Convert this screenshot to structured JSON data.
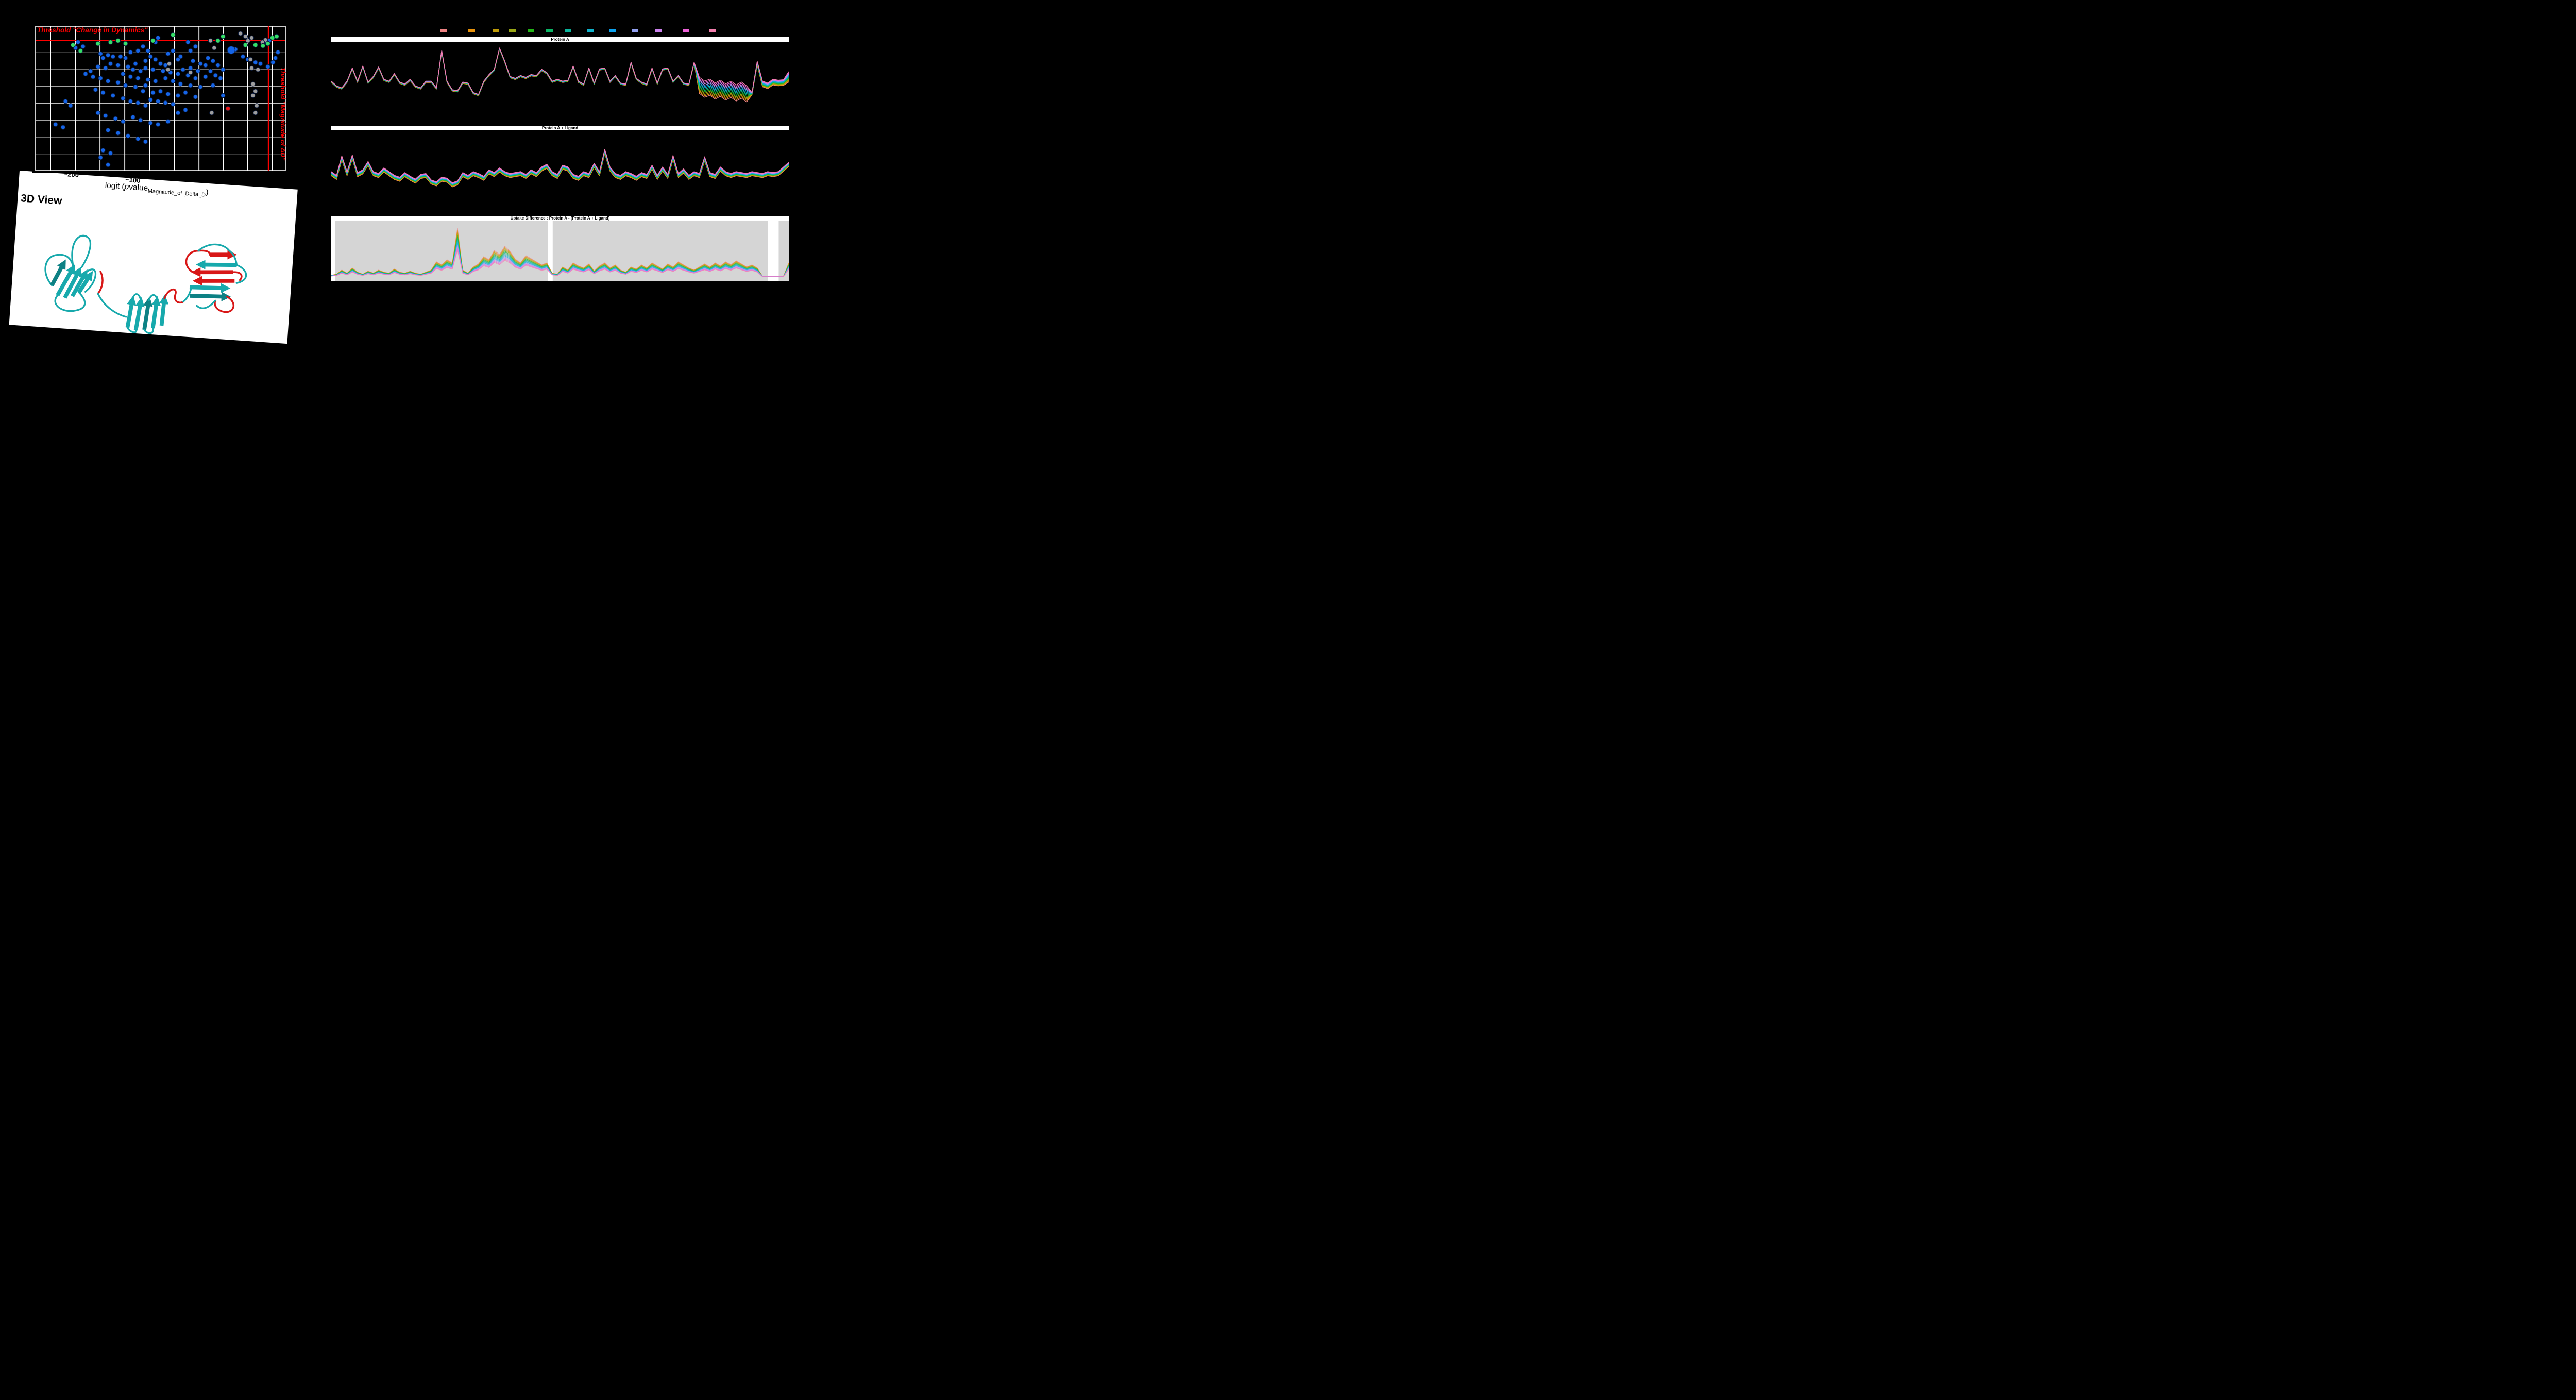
{
  "colors": {
    "threshold_red": "#ff0000",
    "scatter_blue": "#1565e8",
    "scatter_green": "#35df66",
    "scatter_gray": "#9d9d9d",
    "scatter_red": "#ee1515",
    "ribbon_teal": "#17a9ac",
    "ribbon_dark_teal": "#0d8184",
    "ribbon_red": "#d81717",
    "panel3_bg": "#d5d5d5"
  },
  "panel3d": {
    "title": "3D View"
  },
  "legend": {
    "swatch_colors": [
      "#ee8383",
      "#e8920b",
      "#bf9b07",
      "#9aa716",
      "#22b517",
      "#0ab666",
      "#0ab69d",
      "#0fb3cc",
      "#0ca3f0",
      "#92a0f0",
      "#cc82ee",
      "#ee61d8",
      "#f47fae"
    ],
    "x_centers": [
      860,
      915,
      962,
      994,
      1030,
      1066,
      1102,
      1145,
      1188,
      1232,
      1277,
      1331,
      1383
    ]
  },
  "chart_data": [
    {
      "type": "line",
      "title": "Protein A",
      "mode": "offset",
      "n_series": 13,
      "base": [
        30,
        20,
        16,
        30,
        58,
        30,
        62,
        28,
        40,
        60,
        34,
        30,
        46,
        28,
        24,
        34,
        20,
        16,
        30,
        30,
        16,
        95,
        30,
        12,
        10,
        28,
        26,
        6,
        2,
        30,
        44,
        55,
        100,
        72,
        40,
        36,
        42,
        38,
        44,
        42,
        55,
        48,
        30,
        34,
        30,
        32,
        62,
        30,
        24,
        58,
        26,
        56,
        58,
        30,
        42,
        26,
        24,
        70,
        36,
        28,
        24,
        58,
        26,
        56,
        58,
        30,
        42,
        26,
        24,
        70,
        38,
        30,
        34,
        26,
        32,
        24,
        30,
        22,
        28,
        20,
        6,
        72,
        30,
        26,
        34,
        32,
        33,
        50
      ],
      "spread": [
        3,
        3,
        3,
        3,
        3,
        3,
        3,
        3,
        3,
        3,
        3,
        3,
        3,
        3,
        3,
        3,
        3,
        3,
        3,
        3,
        3,
        3,
        3,
        3,
        3,
        3,
        3,
        3,
        3,
        3,
        3,
        3,
        3,
        3,
        3,
        3,
        3,
        3,
        3,
        3,
        3,
        3,
        3,
        3,
        3,
        3,
        3,
        3,
        3,
        3,
        3,
        3,
        3,
        3,
        3,
        3,
        3,
        3,
        3,
        3,
        3,
        3,
        3,
        3,
        3,
        3,
        3,
        3,
        3,
        3,
        34,
        34,
        34,
        34,
        34,
        34,
        34,
        34,
        34,
        34,
        5,
        8,
        12,
        12,
        12,
        12,
        12,
        22
      ]
    },
    {
      "type": "line",
      "title": "Protein A + Ligand",
      "mode": "offset",
      "n_series": 13,
      "base": [
        30,
        22,
        64,
        30,
        66,
        28,
        34,
        52,
        30,
        26,
        38,
        30,
        22,
        18,
        28,
        20,
        14,
        24,
        26,
        12,
        8,
        18,
        16,
        6,
        10,
        28,
        22,
        30,
        26,
        20,
        34,
        28,
        38,
        30,
        26,
        28,
        30,
        24,
        34,
        28,
        40,
        46,
        30,
        24,
        44,
        40,
        24,
        20,
        30,
        26,
        48,
        30,
        78,
        40,
        26,
        22,
        30,
        26,
        20,
        28,
        24,
        44,
        22,
        40,
        24,
        65,
        26,
        36,
        22,
        30,
        26,
        62,
        28,
        24,
        40,
        30,
        26,
        30,
        28,
        26,
        30,
        28,
        26,
        30,
        28,
        30,
        40,
        50
      ],
      "spread": 9
    },
    {
      "type": "line",
      "title": "Uptake Difference : Protein A - (Protein A + Ligand)",
      "mode": "scale",
      "scale_min": 0.55,
      "n_series": 13,
      "bg": "#d5d5d5",
      "white_gaps": [
        [
          0,
          0.8
        ],
        [
          47.3,
          48.4
        ],
        [
          95.4,
          97.8
        ]
      ],
      "base": [
        4,
        6,
        14,
        8,
        18,
        10,
        6,
        12,
        8,
        14,
        10,
        8,
        16,
        10,
        8,
        12,
        8,
        6,
        10,
        14,
        30,
        24,
        34,
        28,
        95,
        14,
        8,
        20,
        26,
        40,
        34,
        52,
        44,
        60,
        50,
        35,
        28,
        42,
        36,
        30,
        24,
        28,
        8,
        6,
        20,
        14,
        28,
        22,
        18,
        26,
        12,
        22,
        28,
        18,
        24,
        14,
        10,
        20,
        16,
        24,
        18,
        28,
        22,
        16,
        26,
        20,
        30,
        24,
        18,
        14,
        20,
        26,
        20,
        28,
        22,
        30,
        24,
        32,
        26,
        20,
        24,
        18,
        2,
        2,
        2,
        2,
        2,
        28
      ]
    },
    {
      "type": "scatter",
      "name": "volcano",
      "labels": {
        "top_threshold": "Threshold \"Change in Dynamics\"",
        "right_threshold": "Threshold \"Magnitude of ΔD\"",
        "xlabel_prefix": "logit (",
        "xlabel_p": "p",
        "xlabel_value": "value",
        "xlabel_sub": "Magnitude_of_Delta_D",
        "xlabel_close": ")",
        "xticks": [
          "−200",
          "−100"
        ]
      },
      "gridlines_x_pct": [
        6,
        15.9,
        25.8,
        35.7,
        45.6,
        55.5,
        65.4,
        75.1,
        84.9,
        94.8
      ],
      "gridlines_y_pct": [
        6.6,
        18.3,
        30,
        41.7,
        53.4,
        65.1,
        76.8,
        88.5
      ],
      "red_hline_y_pct": 9.9,
      "red_vline_x_pct": 93.2,
      "points": {
        "blue": [
          [
            49,
            8
          ],
          [
            48,
            11
          ],
          [
            17,
            11
          ],
          [
            19,
            14
          ],
          [
            16,
            15
          ],
          [
            61,
            11
          ],
          [
            64,
            14
          ],
          [
            62,
            17
          ],
          [
            43,
            14
          ],
          [
            45,
            17
          ],
          [
            41,
            17
          ],
          [
            38,
            18
          ],
          [
            55,
            17
          ],
          [
            53,
            19
          ],
          [
            26,
            19
          ],
          [
            29,
            20
          ],
          [
            31,
            21
          ],
          [
            27,
            22
          ],
          [
            34,
            21
          ],
          [
            36,
            22
          ],
          [
            58,
            21
          ],
          [
            57,
            23
          ],
          [
            46,
            21
          ],
          [
            48,
            23
          ],
          [
            44,
            24
          ],
          [
            40,
            26
          ],
          [
            50,
            26
          ],
          [
            52,
            27
          ],
          [
            63,
            24
          ],
          [
            66,
            26
          ],
          [
            69,
            22
          ],
          [
            71,
            24
          ],
          [
            68,
            27
          ],
          [
            73,
            27
          ],
          [
            62,
            29
          ],
          [
            59,
            30
          ],
          [
            65,
            31
          ],
          [
            70,
            31
          ],
          [
            75,
            30
          ],
          [
            78,
            17
          ],
          [
            80,
            16
          ],
          [
            83,
            21
          ],
          [
            85,
            23
          ],
          [
            88,
            25
          ],
          [
            90,
            26
          ],
          [
            93,
            28
          ],
          [
            96,
            22
          ],
          [
            95,
            25
          ],
          [
            97,
            18
          ],
          [
            72,
            34
          ],
          [
            74,
            36
          ],
          [
            68,
            35
          ],
          [
            64,
            36
          ],
          [
            61,
            34
          ],
          [
            57,
            33
          ],
          [
            54,
            32
          ],
          [
            51,
            31
          ],
          [
            47,
            30
          ],
          [
            44,
            29
          ],
          [
            42,
            31
          ],
          [
            39,
            30
          ],
          [
            37,
            28
          ],
          [
            33,
            27
          ],
          [
            30,
            26
          ],
          [
            28,
            29
          ],
          [
            25,
            28
          ],
          [
            22,
            31
          ],
          [
            35,
            33
          ],
          [
            38,
            35
          ],
          [
            41,
            36
          ],
          [
            45,
            37
          ],
          [
            48,
            38
          ],
          [
            52,
            36
          ],
          [
            55,
            38
          ],
          [
            58,
            40
          ],
          [
            62,
            41
          ],
          [
            66,
            42
          ],
          [
            71,
            41
          ],
          [
            44,
            41
          ],
          [
            40,
            42
          ],
          [
            36,
            41
          ],
          [
            33,
            39
          ],
          [
            29,
            38
          ],
          [
            26,
            36
          ],
          [
            23,
            35
          ],
          [
            20,
            33
          ],
          [
            43,
            45
          ],
          [
            47,
            46
          ],
          [
            50,
            45
          ],
          [
            53,
            47
          ],
          [
            57,
            48
          ],
          [
            60,
            46
          ],
          [
            64,
            49
          ],
          [
            46,
            51
          ],
          [
            49,
            52
          ],
          [
            52,
            53
          ],
          [
            55,
            54
          ],
          [
            44,
            55
          ],
          [
            41,
            53
          ],
          [
            38,
            52
          ],
          [
            35,
            50
          ],
          [
            31,
            48
          ],
          [
            27,
            46
          ],
          [
            24,
            44
          ],
          [
            12,
            52
          ],
          [
            14,
            55
          ],
          [
            8,
            68
          ],
          [
            11,
            70
          ],
          [
            25,
            60
          ],
          [
            28,
            62
          ],
          [
            32,
            64
          ],
          [
            35,
            66
          ],
          [
            39,
            63
          ],
          [
            42,
            65
          ],
          [
            46,
            67
          ],
          [
            49,
            68
          ],
          [
            53,
            66
          ],
          [
            29,
            72
          ],
          [
            33,
            74
          ],
          [
            37,
            76
          ],
          [
            41,
            78
          ],
          [
            44,
            80
          ],
          [
            27,
            86
          ],
          [
            30,
            88
          ],
          [
            26,
            91
          ],
          [
            29,
            96
          ],
          [
            57,
            60
          ],
          [
            60,
            58
          ],
          [
            75,
            48
          ],
          [
            93.5,
            10
          ],
          [
            92.5,
            11.5
          ]
        ],
        "green": [
          [
            15,
            13
          ],
          [
            18,
            17
          ],
          [
            25,
            12
          ],
          [
            30,
            11
          ],
          [
            33,
            10
          ],
          [
            36,
            12
          ],
          [
            47,
            10
          ],
          [
            55,
            6
          ],
          [
            75,
            7
          ],
          [
            73,
            10
          ],
          [
            84,
            13
          ],
          [
            88,
            13
          ],
          [
            91,
            13.5
          ],
          [
            94.8,
            8
          ],
          [
            93,
            12
          ],
          [
            96.5,
            7
          ]
        ],
        "gray": [
          [
            82,
            5
          ],
          [
            84,
            7
          ],
          [
            86.5,
            8
          ],
          [
            85,
            10
          ],
          [
            70,
            10
          ],
          [
            71.5,
            15
          ],
          [
            53.5,
            26
          ],
          [
            53,
            30
          ],
          [
            62,
            32
          ],
          [
            86,
            23
          ],
          [
            86.5,
            29
          ],
          [
            87,
            40
          ],
          [
            88,
            45
          ],
          [
            87,
            48
          ],
          [
            88.5,
            55
          ],
          [
            88,
            60
          ],
          [
            70.5,
            60
          ],
          [
            89,
            30
          ],
          [
            92,
            9.5
          ],
          [
            90.8,
            11
          ]
        ],
        "red": [
          [
            77,
            57
          ]
        ],
        "big_blue": [
          [
            78.3,
            16.5
          ]
        ]
      }
    }
  ]
}
